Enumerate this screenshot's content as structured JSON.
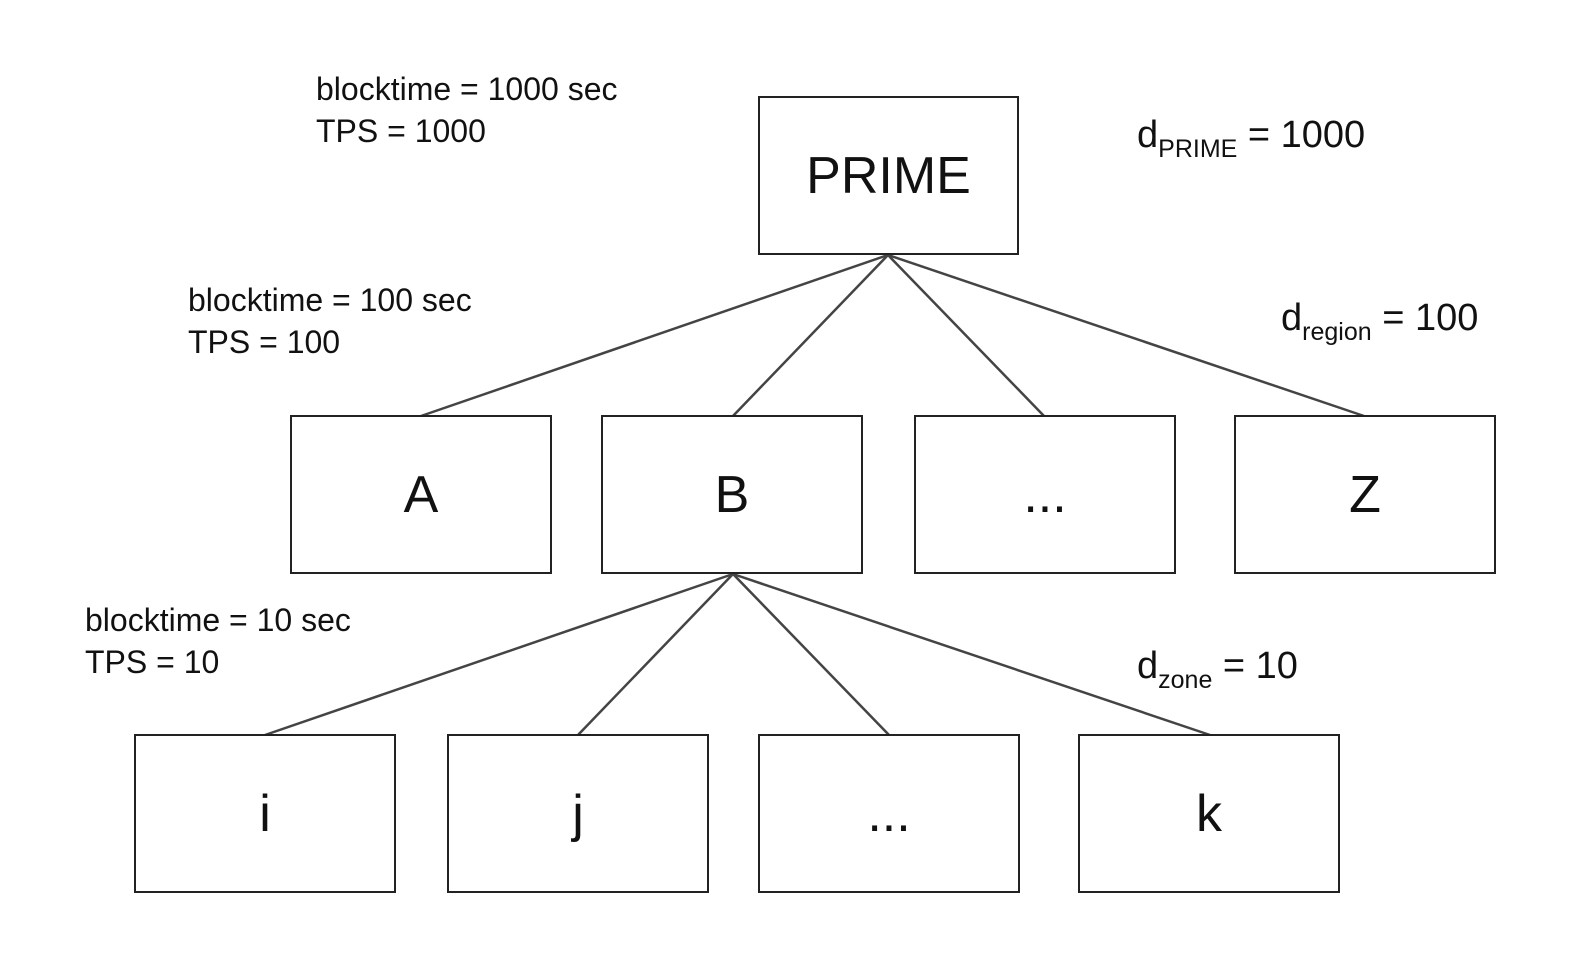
{
  "nodes": {
    "prime": "PRIME",
    "region_a": "A",
    "region_b": "B",
    "region_ellipsis": "...",
    "region_z": "Z",
    "zone_i": "i",
    "zone_j": "j",
    "zone_ellipsis": "...",
    "zone_k": "k"
  },
  "levels": {
    "prime": {
      "blocktime": "blocktime = 1000 sec",
      "tps": "TPS = 1000"
    },
    "region": {
      "blocktime": "blocktime = 100 sec",
      "tps": "TPS = 100"
    },
    "zone": {
      "blocktime": "blocktime = 10 sec",
      "tps": "TPS = 10"
    }
  },
  "difficulty": {
    "prime": {
      "base": "d",
      "sub": "PRIME",
      "value": " = 1000"
    },
    "region": {
      "base": "d",
      "sub": "region",
      "value": " = 100"
    },
    "zone": {
      "base": "d",
      "sub": "zone",
      "value": " = 10"
    }
  },
  "colors": {
    "stroke": "#222222",
    "edge": "#444444",
    "text": "#111111"
  }
}
